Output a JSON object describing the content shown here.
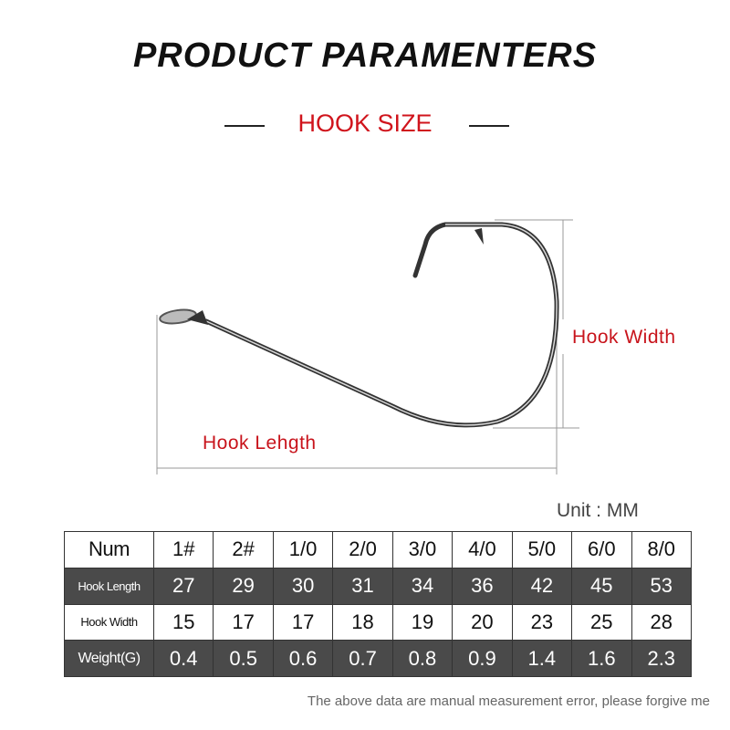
{
  "header": {
    "title": "PRODUCT PARAMENTERS",
    "subtitle": "HOOK SIZE"
  },
  "diagram": {
    "width_label": "Hook Width",
    "length_label": "Hook Lehgth"
  },
  "unit": "Unit : MM",
  "table": {
    "header": [
      "Num",
      "1#",
      "2#",
      "1/0",
      "2/0",
      "3/0",
      "4/0",
      "5/0",
      "6/0",
      "8/0"
    ],
    "rows": [
      {
        "label": "Hook Length",
        "values": [
          "27",
          "29",
          "30",
          "31",
          "34",
          "36",
          "42",
          "45",
          "53"
        ]
      },
      {
        "label": "Hook Width",
        "values": [
          "15",
          "17",
          "17",
          "18",
          "19",
          "20",
          "23",
          "25",
          "28"
        ]
      },
      {
        "label": "Weight(G)",
        "values": [
          "0.4",
          "0.5",
          "0.6",
          "0.7",
          "0.8",
          "0.9",
          "1.4",
          "1.6",
          "2.3"
        ]
      }
    ]
  },
  "note": "The above data are manual measurement error, please forgive me",
  "colors": {
    "accent": "#d0141c",
    "dark_row": "#4a4a4a"
  }
}
